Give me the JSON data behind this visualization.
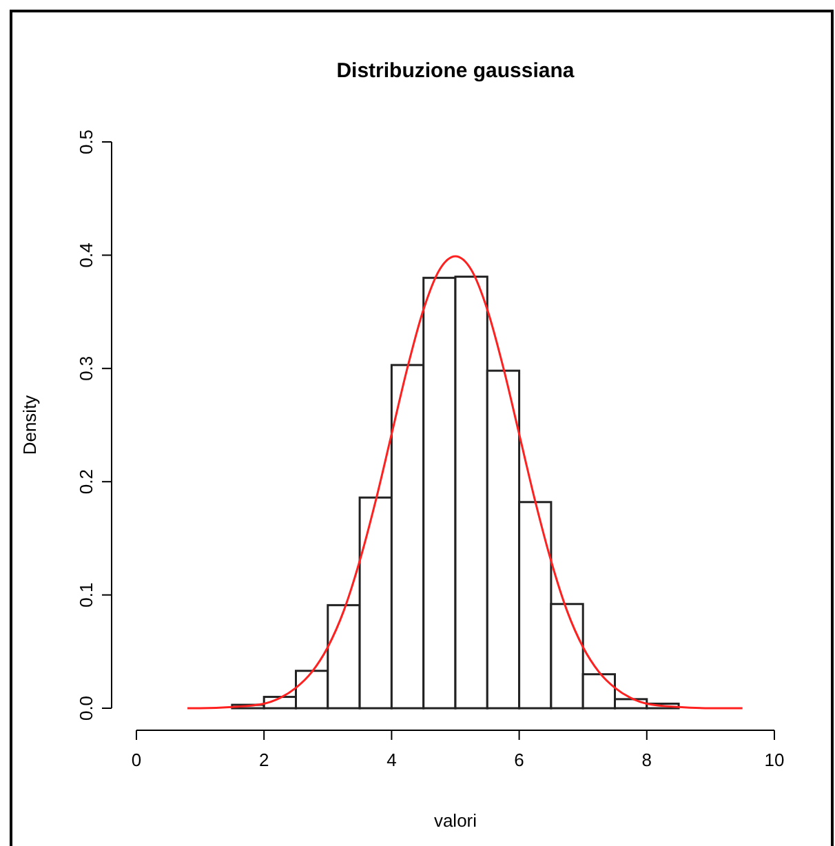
{
  "chart_data": {
    "type": "histogram",
    "title": "Distribuzione gaussiana",
    "xlabel": "valori",
    "ylabel": "Density",
    "bins": [
      1.5,
      2,
      2.5,
      3,
      3.5,
      4,
      4.5,
      5,
      5.5,
      6,
      6.5,
      7,
      7.5,
      8,
      8.5
    ],
    "values": [
      0.003,
      0.01,
      0.033,
      0.091,
      0.186,
      0.303,
      0.38,
      0.381,
      0.298,
      0.182,
      0.092,
      0.03,
      0.008,
      0.004
    ],
    "color": "#ffffff",
    "series": [
      {
        "type": "line",
        "color": "#ff2020",
        "x": [
          0.8,
          1,
          1.5,
          2,
          2.25,
          2.5,
          2.75,
          3,
          3.25,
          3.5,
          3.75,
          4,
          4.25,
          4.5,
          4.75,
          5,
          5.25,
          5.5,
          5.75,
          6,
          6.25,
          6.5,
          6.75,
          7,
          7.25,
          7.5,
          7.75,
          8,
          8.5,
          9,
          9.5
        ],
        "values": [
          0,
          0,
          0.001,
          0.004,
          0.009,
          0.018,
          0.032,
          0.054,
          0.086,
          0.13,
          0.183,
          0.242,
          0.301,
          0.352,
          0.387,
          0.399,
          0.387,
          0.352,
          0.301,
          0.242,
          0.183,
          0.13,
          0.086,
          0.054,
          0.032,
          0.018,
          0.009,
          0.004,
          0.001,
          0,
          0
        ]
      }
    ],
    "xlim": [
      0,
      10
    ],
    "ylim": [
      0,
      0.5
    ],
    "xticks": [
      0,
      2,
      4,
      6,
      8,
      10
    ],
    "yticks": [
      {
        "value": 0,
        "label": "0.0"
      },
      0.1,
      0.2,
      0.3,
      0.4,
      0.5
    ],
    "grid": false
  }
}
